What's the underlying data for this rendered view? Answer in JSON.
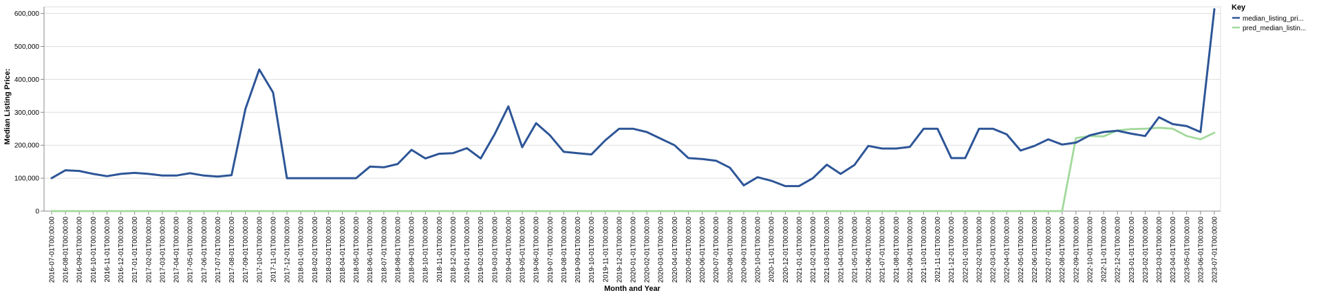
{
  "chart_data": {
    "type": "line",
    "xlabel": "Month and Year",
    "ylabel": "Median Listing Price:",
    "ylim": [
      0,
      620000
    ],
    "y_ticks": [
      0,
      100000,
      200000,
      300000,
      400000,
      500000,
      600000
    ],
    "y_tick_labels": [
      "0",
      "100,000",
      "200,000",
      "300,000",
      "400,000",
      "500,000",
      "600,000"
    ],
    "grid": true,
    "legend": {
      "title": "Key",
      "placement": "top-right"
    },
    "x": [
      "2016-07-01T00:00:00",
      "2016-08-01T00:00:00",
      "2016-09-01T00:00:00",
      "2016-10-01T00:00:00",
      "2016-11-01T00:00:00",
      "2016-12-01T00:00:00",
      "2017-01-01T00:00:00",
      "2017-02-01T00:00:00",
      "2017-03-01T00:00:00",
      "2017-04-01T00:00:00",
      "2017-05-01T00:00:00",
      "2017-06-01T00:00:00",
      "2017-07-01T00:00:00",
      "2017-08-01T00:00:00",
      "2017-09-01T00:00:00",
      "2017-10-01T00:00:00",
      "2017-11-01T00:00:00",
      "2017-12-01T00:00:00",
      "2018-01-01T00:00:00",
      "2018-02-01T00:00:00",
      "2018-03-01T00:00:00",
      "2018-04-01T00:00:00",
      "2018-05-01T00:00:00",
      "2018-06-01T00:00:00",
      "2018-07-01T00:00:00",
      "2018-08-01T00:00:00",
      "2018-09-01T00:00:00",
      "2018-10-01T00:00:00",
      "2018-11-01T00:00:00",
      "2018-12-01T00:00:00",
      "2019-01-01T00:00:00",
      "2019-02-01T00:00:00",
      "2019-03-01T00:00:00",
      "2019-04-01T00:00:00",
      "2019-05-01T00:00:00",
      "2019-06-01T00:00:00",
      "2019-07-01T00:00:00",
      "2019-08-01T00:00:00",
      "2019-09-01T00:00:00",
      "2019-10-01T00:00:00",
      "2019-11-01T00:00:00",
      "2019-12-01T00:00:00",
      "2020-01-01T00:00:00",
      "2020-02-01T00:00:00",
      "2020-03-01T00:00:00",
      "2020-04-01T00:00:00",
      "2020-05-01T00:00:00",
      "2020-06-01T00:00:00",
      "2020-07-01T00:00:00",
      "2020-08-01T00:00:00",
      "2020-09-01T00:00:00",
      "2020-10-01T00:00:00",
      "2020-11-01T00:00:00",
      "2020-12-01T00:00:00",
      "2021-01-01T00:00:00",
      "2021-02-01T00:00:00",
      "2021-03-01T00:00:00",
      "2021-04-01T00:00:00",
      "2021-05-01T00:00:00",
      "2021-06-01T00:00:00",
      "2021-07-01T00:00:00",
      "2021-08-01T00:00:00",
      "2021-09-01T00:00:00",
      "2021-10-01T00:00:00",
      "2021-11-01T00:00:00",
      "2021-12-01T00:00:00",
      "2022-01-01T00:00:00",
      "2022-02-01T00:00:00",
      "2022-03-01T00:00:00",
      "2022-04-01T00:00:00",
      "2022-05-01T00:00:00",
      "2022-06-01T00:00:00",
      "2022-07-01T00:00:00",
      "2022-08-01T00:00:00",
      "2022-09-01T00:00:00",
      "2022-10-01T00:00:00",
      "2022-11-01T00:00:00",
      "2022-12-01T00:00:00",
      "2023-01-01T00:00:00",
      "2023-02-01T00:00:00",
      "2023-03-01T00:00:00",
      "2023-04-01T00:00:00",
      "2023-05-01T00:00:00",
      "2023-06-01T00:00:00",
      "2023-07-01T00:00:00"
    ],
    "series": [
      {
        "name": "median_listing_pri...",
        "color": "#2d5597",
        "values": [
          100000,
          124000,
          122000,
          113000,
          106000,
          113000,
          116000,
          113000,
          108000,
          108000,
          115000,
          108000,
          105000,
          109000,
          310000,
          430000,
          360000,
          100000,
          100000,
          100000,
          100000,
          100000,
          100000,
          135000,
          133000,
          143000,
          186000,
          160000,
          174000,
          176000,
          191000,
          160000,
          233000,
          318000,
          194000,
          267000,
          230000,
          180000,
          176000,
          172000,
          215000,
          250000,
          250000,
          240000,
          220000,
          200000,
          161000,
          158000,
          153000,
          132000,
          78000,
          103000,
          92000,
          76000,
          76000,
          100000,
          141000,
          113000,
          140000,
          198000,
          190000,
          190000,
          195000,
          250000,
          250000,
          161000,
          161000,
          250000,
          250000,
          233000,
          184000,
          198000,
          218000,
          202000,
          208000,
          230000,
          240000,
          244000,
          235000,
          228000,
          285000,
          264000,
          258000,
          240000,
          613000
        ]
      },
      {
        "name": "pred_median_listin...",
        "color": "#a1d99b",
        "values": [
          0,
          0,
          0,
          0,
          0,
          0,
          0,
          0,
          0,
          0,
          0,
          0,
          0,
          0,
          0,
          0,
          0,
          0,
          0,
          0,
          0,
          0,
          0,
          0,
          0,
          0,
          0,
          0,
          0,
          0,
          0,
          0,
          0,
          0,
          0,
          0,
          0,
          0,
          0,
          0,
          0,
          0,
          0,
          0,
          0,
          0,
          0,
          0,
          0,
          0,
          0,
          0,
          0,
          0,
          0,
          0,
          0,
          0,
          0,
          0,
          0,
          0,
          0,
          0,
          0,
          0,
          0,
          0,
          0,
          0,
          0,
          0,
          0,
          0,
          222000,
          228000,
          227000,
          245000,
          249000,
          250000,
          253000,
          250000,
          228000,
          218000,
          238000
        ]
      }
    ]
  }
}
